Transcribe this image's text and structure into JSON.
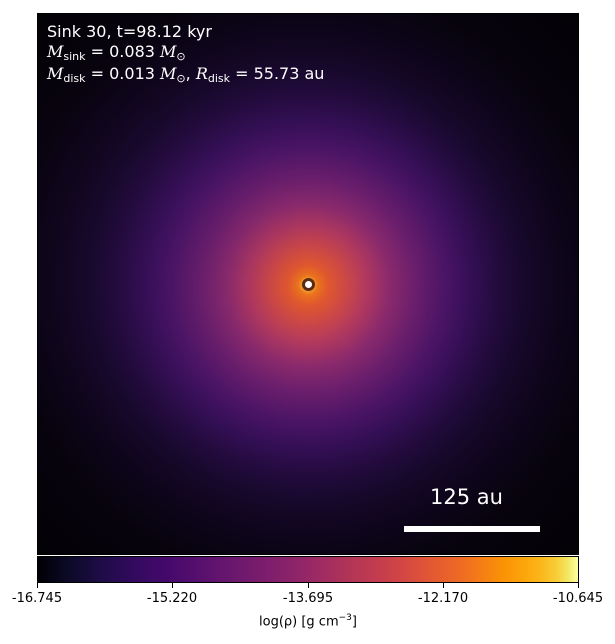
{
  "panel": {
    "title_line": "Sink 30, t=98.12 kyr",
    "sink_mass": {
      "symbol": "M",
      "subscript": "sink",
      "value": "= 0.083",
      "unit_symbol": "M",
      "unit_subscript": "⊙"
    },
    "disk": {
      "mass_symbol": "M",
      "mass_subscript": "disk",
      "mass_value": "= 0.013",
      "mass_unit_symbol": "M",
      "mass_unit_subscript": "⊙",
      "separator": ",",
      "radius_symbol": "R",
      "radius_subscript": "disk",
      "radius_value": "= 55.73 au"
    },
    "scale_bar_label": "125 au"
  },
  "colorbar": {
    "colormap": "inferno",
    "ticks": [
      "-16.745",
      "-15.220",
      "-13.695",
      "-12.170",
      "-10.645"
    ],
    "label_main": "log(ρ) [g cm",
    "label_exp": "−3",
    "label_close": "]"
  },
  "colors": {
    "sink_marker_fill": "#ffffff",
    "sink_marker_edge": "#5b2a12",
    "annotation_text": "#ffffff"
  }
}
